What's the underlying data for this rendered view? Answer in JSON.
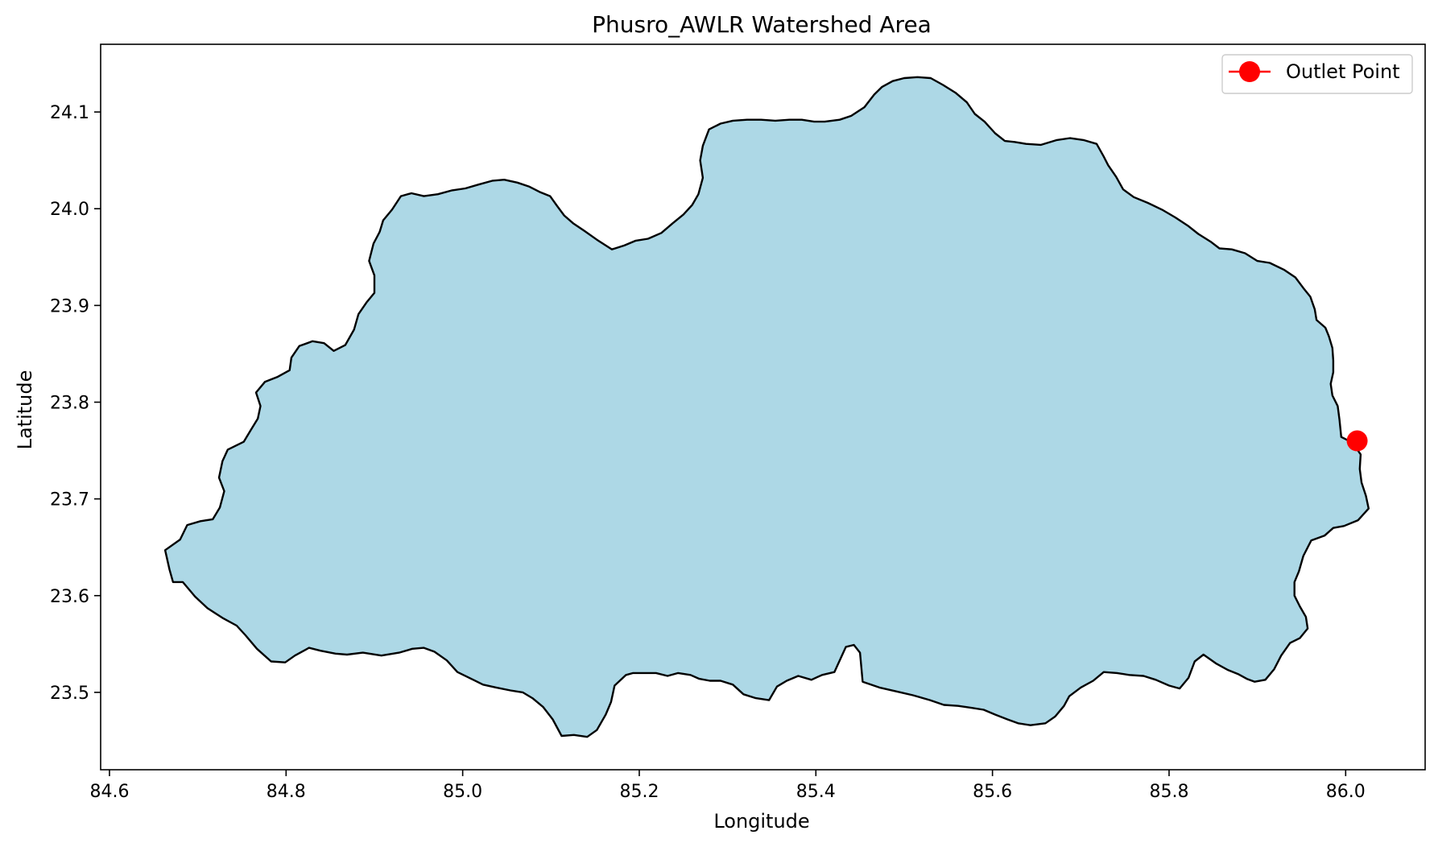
{
  "chart_data": {
    "type": "map",
    "title": "Phusro_AWLR Watershed Area",
    "xlabel": "Longitude",
    "ylabel": "Latitude",
    "xlim": [
      84.59,
      86.09
    ],
    "ylim": [
      23.42,
      24.17
    ],
    "xticks": [
      84.6,
      84.8,
      85.0,
      85.2,
      85.4,
      85.6,
      85.8,
      86.0
    ],
    "yticks": [
      23.5,
      23.6,
      23.7,
      23.8,
      23.9,
      24.0,
      24.1
    ],
    "xtick_labels": [
      "84.6",
      "84.8",
      "85.0",
      "85.2",
      "85.4",
      "85.6",
      "85.8",
      "86.0"
    ],
    "ytick_labels": [
      "23.5",
      "23.6",
      "23.7",
      "23.8",
      "23.9",
      "24.0",
      "24.1"
    ],
    "legend": {
      "position": "top-right",
      "entries": [
        {
          "label": "Outlet Point"
        }
      ]
    },
    "watershed": {
      "fill": "#add8e6",
      "edge": "#000000",
      "boundary": [
        [
          84.663,
          23.647
        ],
        [
          84.668,
          23.627
        ],
        [
          84.672,
          23.614
        ],
        [
          84.683,
          23.614
        ],
        [
          84.697,
          23.599
        ],
        [
          84.711,
          23.587
        ],
        [
          84.728,
          23.577
        ],
        [
          84.744,
          23.569
        ],
        [
          84.754,
          23.559
        ],
        [
          84.767,
          23.545
        ],
        [
          84.783,
          23.532
        ],
        [
          84.799,
          23.531
        ],
        [
          84.81,
          23.538
        ],
        [
          84.826,
          23.546
        ],
        [
          84.839,
          23.543
        ],
        [
          84.856,
          23.54
        ],
        [
          84.869,
          23.539
        ],
        [
          84.887,
          23.541
        ],
        [
          84.908,
          23.538
        ],
        [
          84.928,
          23.541
        ],
        [
          84.943,
          23.545
        ],
        [
          84.956,
          23.546
        ],
        [
          84.968,
          23.542
        ],
        [
          84.982,
          23.533
        ],
        [
          84.994,
          23.521
        ],
        [
          85.012,
          23.513
        ],
        [
          85.023,
          23.508
        ],
        [
          85.038,
          23.505
        ],
        [
          85.054,
          23.502
        ],
        [
          85.068,
          23.5
        ],
        [
          85.079,
          23.494
        ],
        [
          85.091,
          23.485
        ],
        [
          85.102,
          23.472
        ],
        [
          85.112,
          23.455
        ],
        [
          85.126,
          23.456
        ],
        [
          85.141,
          23.454
        ],
        [
          85.152,
          23.461
        ],
        [
          85.162,
          23.477
        ],
        [
          85.168,
          23.49
        ],
        [
          85.172,
          23.507
        ],
        [
          85.185,
          23.518
        ],
        [
          85.193,
          23.52
        ],
        [
          85.206,
          23.52
        ],
        [
          85.219,
          23.52
        ],
        [
          85.232,
          23.517
        ],
        [
          85.244,
          23.52
        ],
        [
          85.258,
          23.518
        ],
        [
          85.268,
          23.514
        ],
        [
          85.28,
          23.512
        ],
        [
          85.292,
          23.512
        ],
        [
          85.306,
          23.508
        ],
        [
          85.318,
          23.498
        ],
        [
          85.332,
          23.494
        ],
        [
          85.347,
          23.492
        ],
        [
          85.356,
          23.506
        ],
        [
          85.367,
          23.512
        ],
        [
          85.38,
          23.517
        ],
        [
          85.395,
          23.513
        ],
        [
          85.407,
          23.518
        ],
        [
          85.421,
          23.521
        ],
        [
          85.434,
          23.547
        ],
        [
          85.443,
          23.549
        ],
        [
          85.45,
          23.541
        ],
        [
          85.453,
          23.511
        ],
        [
          85.472,
          23.505
        ],
        [
          85.491,
          23.501
        ],
        [
          85.51,
          23.497
        ],
        [
          85.529,
          23.492
        ],
        [
          85.545,
          23.487
        ],
        [
          85.561,
          23.486
        ],
        [
          85.576,
          23.484
        ],
        [
          85.59,
          23.482
        ],
        [
          85.603,
          23.477
        ],
        [
          85.617,
          23.472
        ],
        [
          85.629,
          23.468
        ],
        [
          85.643,
          23.466
        ],
        [
          85.66,
          23.468
        ],
        [
          85.671,
          23.475
        ],
        [
          85.681,
          23.486
        ],
        [
          85.687,
          23.496
        ],
        [
          85.7,
          23.505
        ],
        [
          85.714,
          23.512
        ],
        [
          85.726,
          23.521
        ],
        [
          85.741,
          23.52
        ],
        [
          85.755,
          23.518
        ],
        [
          85.771,
          23.517
        ],
        [
          85.785,
          23.513
        ],
        [
          85.8,
          23.507
        ],
        [
          85.812,
          23.504
        ],
        [
          85.822,
          23.515
        ],
        [
          85.829,
          23.532
        ],
        [
          85.839,
          23.539
        ],
        [
          85.853,
          23.53
        ],
        [
          85.867,
          23.523
        ],
        [
          85.878,
          23.519
        ],
        [
          85.888,
          23.514
        ],
        [
          85.897,
          23.511
        ],
        [
          85.909,
          23.513
        ],
        [
          85.919,
          23.524
        ],
        [
          85.927,
          23.538
        ],
        [
          85.937,
          23.551
        ],
        [
          85.948,
          23.556
        ],
        [
          85.957,
          23.566
        ],
        [
          85.955,
          23.578
        ],
        [
          85.948,
          23.589
        ],
        [
          85.942,
          23.6
        ],
        [
          85.942,
          23.614
        ],
        [
          85.947,
          23.625
        ],
        [
          85.952,
          23.641
        ],
        [
          85.961,
          23.657
        ],
        [
          85.976,
          23.662
        ],
        [
          85.986,
          23.67
        ],
        [
          85.998,
          23.672
        ],
        [
          86.014,
          23.678
        ],
        [
          86.026,
          23.69
        ],
        [
          86.023,
          23.703
        ],
        [
          86.018,
          23.717
        ],
        [
          86.016,
          23.731
        ],
        [
          86.017,
          23.746
        ],
        [
          86.008,
          23.758
        ],
        [
          85.995,
          23.764
        ],
        [
          85.993,
          23.782
        ],
        [
          85.991,
          23.796
        ],
        [
          85.985,
          23.807
        ],
        [
          85.983,
          23.819
        ],
        [
          85.986,
          23.831
        ],
        [
          85.986,
          23.843
        ],
        [
          85.985,
          23.856
        ],
        [
          85.981,
          23.868
        ],
        [
          85.977,
          23.877
        ],
        [
          85.967,
          23.885
        ],
        [
          85.965,
          23.896
        ],
        [
          85.96,
          23.909
        ],
        [
          85.952,
          23.918
        ],
        [
          85.943,
          23.929
        ],
        [
          85.93,
          23.937
        ],
        [
          85.914,
          23.944
        ],
        [
          85.9,
          23.946
        ],
        [
          85.886,
          23.954
        ],
        [
          85.871,
          23.958
        ],
        [
          85.857,
          23.959
        ],
        [
          85.847,
          23.966
        ],
        [
          85.833,
          23.974
        ],
        [
          85.822,
          23.982
        ],
        [
          85.807,
          23.991
        ],
        [
          85.792,
          23.999
        ],
        [
          85.776,
          24.006
        ],
        [
          85.76,
          24.012
        ],
        [
          85.748,
          24.02
        ],
        [
          85.74,
          24.033
        ],
        [
          85.731,
          24.045
        ],
        [
          85.726,
          24.054
        ],
        [
          85.718,
          24.067
        ],
        [
          85.703,
          24.071
        ],
        [
          85.688,
          24.073
        ],
        [
          85.673,
          24.071
        ],
        [
          85.655,
          24.066
        ],
        [
          85.638,
          24.067
        ],
        [
          85.625,
          24.069
        ],
        [
          85.614,
          24.07
        ],
        [
          85.603,
          24.078
        ],
        [
          85.591,
          24.09
        ],
        [
          85.58,
          24.098
        ],
        [
          85.571,
          24.11
        ],
        [
          85.558,
          24.12
        ],
        [
          85.544,
          24.128
        ],
        [
          85.53,
          24.135
        ],
        [
          85.515,
          24.136
        ],
        [
          85.5,
          24.135
        ],
        [
          85.487,
          24.132
        ],
        [
          85.475,
          24.126
        ],
        [
          85.466,
          24.118
        ],
        [
          85.455,
          24.105
        ],
        [
          85.44,
          24.096
        ],
        [
          85.427,
          24.092
        ],
        [
          85.41,
          24.09
        ],
        [
          85.398,
          24.09
        ],
        [
          85.384,
          24.092
        ],
        [
          85.37,
          24.092
        ],
        [
          85.354,
          24.091
        ],
        [
          85.338,
          24.092
        ],
        [
          85.322,
          24.092
        ],
        [
          85.306,
          24.091
        ],
        [
          85.292,
          24.088
        ],
        [
          85.279,
          24.082
        ],
        [
          85.272,
          24.065
        ],
        [
          85.269,
          24.05
        ],
        [
          85.272,
          24.032
        ],
        [
          85.267,
          24.015
        ],
        [
          85.26,
          24.004
        ],
        [
          85.25,
          23.994
        ],
        [
          85.238,
          23.985
        ],
        [
          85.225,
          23.975
        ],
        [
          85.21,
          23.969
        ],
        [
          85.196,
          23.967
        ],
        [
          85.183,
          23.962
        ],
        [
          85.169,
          23.958
        ],
        [
          85.152,
          23.968
        ],
        [
          85.138,
          23.977
        ],
        [
          85.125,
          23.985
        ],
        [
          85.115,
          23.993
        ],
        [
          85.106,
          24.004
        ],
        [
          85.099,
          24.013
        ],
        [
          85.088,
          24.017
        ],
        [
          85.075,
          24.023
        ],
        [
          85.062,
          24.027
        ],
        [
          85.047,
          24.03
        ],
        [
          85.034,
          24.029
        ],
        [
          85.018,
          24.025
        ],
        [
          85.003,
          24.021
        ],
        [
          84.988,
          24.019
        ],
        [
          84.972,
          24.015
        ],
        [
          84.956,
          24.013
        ],
        [
          84.942,
          24.016
        ],
        [
          84.93,
          24.013
        ],
        [
          84.92,
          23.999
        ],
        [
          84.91,
          23.988
        ],
        [
          84.906,
          23.976
        ],
        [
          84.899,
          23.964
        ],
        [
          84.894,
          23.946
        ],
        [
          84.9,
          23.931
        ],
        [
          84.9,
          23.913
        ],
        [
          84.891,
          23.903
        ],
        [
          84.882,
          23.891
        ],
        [
          84.877,
          23.875
        ],
        [
          84.867,
          23.859
        ],
        [
          84.854,
          23.853
        ],
        [
          84.843,
          23.861
        ],
        [
          84.83,
          23.863
        ],
        [
          84.815,
          23.858
        ],
        [
          84.806,
          23.846
        ],
        [
          84.804,
          23.833
        ],
        [
          84.79,
          23.826
        ],
        [
          84.776,
          23.821
        ],
        [
          84.766,
          23.81
        ],
        [
          84.771,
          23.796
        ],
        [
          84.768,
          23.783
        ],
        [
          84.76,
          23.771
        ],
        [
          84.752,
          23.759
        ],
        [
          84.734,
          23.751
        ],
        [
          84.728,
          23.739
        ],
        [
          84.724,
          23.722
        ],
        [
          84.73,
          23.708
        ],
        [
          84.725,
          23.691
        ],
        [
          84.717,
          23.679
        ],
        [
          84.703,
          23.677
        ],
        [
          84.688,
          23.673
        ],
        [
          84.68,
          23.658
        ],
        [
          84.663,
          23.647
        ]
      ]
    },
    "outlet_point": {
      "lon": 86.013,
      "lat": 23.76,
      "color": "#ff0000"
    }
  }
}
